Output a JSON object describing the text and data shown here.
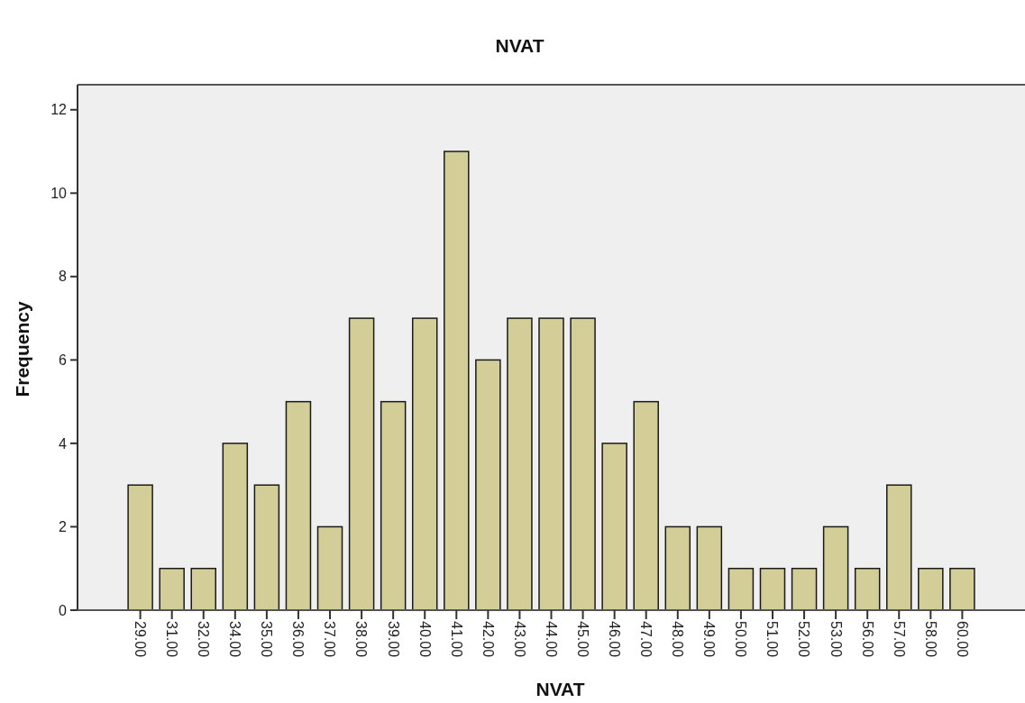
{
  "chart_data": {
    "type": "bar",
    "title": "NVAT",
    "xlabel": "NVAT",
    "ylabel": "Frequency",
    "categories": [
      "29.00",
      "31.00",
      "32.00",
      "34.00",
      "35.00",
      "36.00",
      "37.00",
      "38.00",
      "39.00",
      "40.00",
      "41.00",
      "42.00",
      "43.00",
      "44.00",
      "45.00",
      "46.00",
      "47.00",
      "48.00",
      "49.00",
      "50.00",
      "51.00",
      "52.00",
      "53.00",
      "56.00",
      "57.00",
      "58.00",
      "60.00"
    ],
    "values": [
      3,
      1,
      1,
      4,
      3,
      5,
      2,
      7,
      5,
      7,
      11,
      6,
      7,
      7,
      7,
      4,
      5,
      2,
      2,
      1,
      1,
      1,
      2,
      1,
      3,
      1,
      1
    ],
    "color": "#d3ce97",
    "ylim": [
      0,
      12.6
    ],
    "yticks": [
      0,
      2,
      4,
      6,
      8,
      10,
      12
    ]
  }
}
